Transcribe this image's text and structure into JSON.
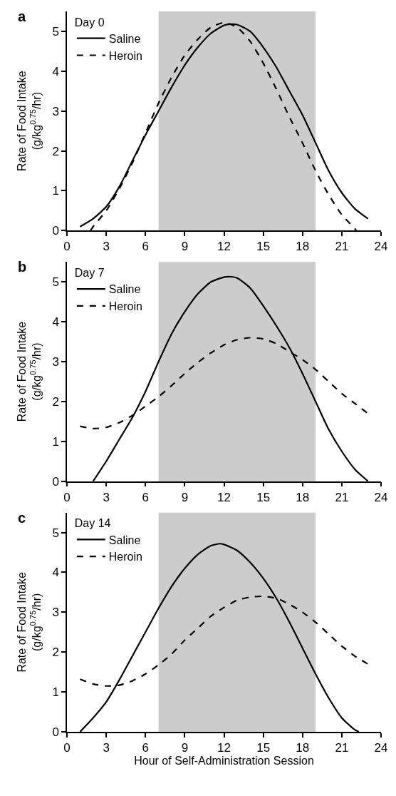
{
  "chart_data": [
    {
      "type": "line",
      "title": "a",
      "legend_title": "Day 0",
      "ylabel": "Rate of Food Intake\n(g/kg$^{0.75}$/hr)",
      "xlim": [
        0,
        24
      ],
      "xticks": [
        0,
        3,
        6,
        9,
        12,
        15,
        18,
        21,
        24
      ],
      "ylim": [
        0,
        5.5
      ],
      "yticks": [
        0,
        1,
        2,
        3,
        4,
        5
      ],
      "grid": false,
      "legend": "top left",
      "tick_labels": true,
      "bands": [
        {
          "axis": "x",
          "from": 7,
          "to": 19,
          "color": "#cccccc"
        }
      ],
      "series": [
        {
          "name": "Saline",
          "color": "#000000",
          "line_style": "solid",
          "x": [
            1,
            2,
            3,
            4,
            5,
            6,
            7,
            8,
            9,
            10,
            11,
            12,
            12.5,
            13,
            14,
            15,
            16,
            17,
            18,
            19,
            20,
            21,
            22,
            23
          ],
          "values": [
            0.1,
            0.3,
            0.6,
            1.1,
            1.75,
            2.4,
            3.0,
            3.6,
            4.15,
            4.6,
            4.95,
            5.15,
            5.18,
            5.17,
            5.0,
            4.6,
            4.1,
            3.5,
            2.9,
            2.2,
            1.5,
            0.95,
            0.55,
            0.3
          ]
        },
        {
          "name": "Heroin",
          "color": "#000000",
          "line_style": "dashed",
          "x": [
            1.8,
            2,
            3,
            4,
            5,
            6,
            7,
            8,
            9,
            10,
            11,
            12,
            13,
            14,
            15,
            16,
            17,
            18,
            19,
            20,
            21,
            22,
            22.1
          ],
          "values": [
            0,
            0.1,
            0.5,
            1.05,
            1.7,
            2.45,
            3.2,
            3.85,
            4.4,
            4.8,
            5.1,
            5.22,
            5.1,
            4.75,
            4.2,
            3.55,
            2.85,
            2.2,
            1.5,
            0.9,
            0.4,
            0.05,
            0
          ]
        }
      ]
    },
    {
      "type": "line",
      "title": "b",
      "legend_title": "Day 7",
      "ylabel": "Rate of Food Intake\n(g/kg$^{0.75}$/hr)",
      "xlim": [
        0,
        24
      ],
      "xticks": [
        0,
        3,
        6,
        9,
        12,
        15,
        18,
        21,
        24
      ],
      "ylim": [
        0,
        5.5
      ],
      "yticks": [
        0,
        1,
        2,
        3,
        4,
        5
      ],
      "grid": false,
      "legend": "top left",
      "bands": [
        {
          "axis": "x",
          "from": 7,
          "to": 19,
          "color": "#cccccc"
        }
      ],
      "series": [
        {
          "name": "Saline",
          "color": "#000000",
          "line_style": "solid",
          "x": [
            2,
            3,
            4,
            5,
            6,
            7,
            8,
            9,
            10,
            11,
            12,
            12.5,
            13,
            14,
            15,
            16,
            17,
            18,
            19,
            20,
            21,
            22,
            23
          ],
          "values": [
            0,
            0.5,
            1.05,
            1.6,
            2.25,
            3.0,
            3.7,
            4.25,
            4.7,
            5.0,
            5.12,
            5.13,
            5.1,
            4.85,
            4.4,
            3.9,
            3.35,
            2.7,
            2.0,
            1.3,
            0.75,
            0.3,
            0
          ]
        },
        {
          "name": "Heroin",
          "color": "#000000",
          "line_style": "dashed",
          "x": [
            1,
            2,
            3,
            4,
            5,
            6,
            7,
            8,
            9,
            10,
            11,
            12,
            13,
            14,
            15,
            16,
            17,
            18,
            19,
            20,
            21,
            22,
            23
          ],
          "values": [
            1.38,
            1.32,
            1.35,
            1.47,
            1.65,
            1.88,
            2.12,
            2.4,
            2.7,
            2.98,
            3.22,
            3.42,
            3.55,
            3.6,
            3.57,
            3.45,
            3.25,
            3.05,
            2.8,
            2.5,
            2.2,
            1.95,
            1.7
          ]
        }
      ]
    },
    {
      "type": "line",
      "title": "c",
      "legend_title": "Day 14",
      "xlabel": "Hour of Self-Administration Session",
      "ylabel": "Rate of Food Intake\n(g/kg$^{0.75}$/hr)",
      "xlim": [
        0,
        24
      ],
      "xticks": [
        0,
        3,
        6,
        9,
        12,
        15,
        18,
        21,
        24
      ],
      "ylim": [
        0,
        5.5
      ],
      "yticks": [
        0,
        1,
        2,
        3,
        4,
        5
      ],
      "grid": false,
      "legend": "top left",
      "bands": [
        {
          "axis": "x",
          "from": 7,
          "to": 19,
          "color": "#cccccc"
        }
      ],
      "series": [
        {
          "name": "Saline",
          "color": "#000000",
          "line_style": "solid",
          "x": [
            1,
            2,
            3,
            4,
            5,
            6,
            7,
            8,
            9,
            10,
            11,
            11.7,
            12,
            13,
            14,
            15,
            16,
            17,
            18,
            19,
            20,
            21,
            22,
            22.3
          ],
          "values": [
            0,
            0.35,
            0.75,
            1.3,
            1.9,
            2.5,
            3.1,
            3.65,
            4.1,
            4.45,
            4.67,
            4.72,
            4.7,
            4.55,
            4.25,
            3.85,
            3.35,
            2.75,
            2.1,
            1.45,
            0.85,
            0.35,
            0.05,
            0
          ]
        },
        {
          "name": "Heroin",
          "color": "#000000",
          "line_style": "dashed",
          "x": [
            1,
            2,
            3,
            4,
            5,
            6,
            7,
            8,
            9,
            10,
            11,
            12,
            13,
            14,
            15,
            16,
            17,
            18,
            19,
            20,
            21,
            22,
            23
          ],
          "values": [
            1.32,
            1.2,
            1.15,
            1.17,
            1.28,
            1.45,
            1.68,
            1.95,
            2.3,
            2.6,
            2.9,
            3.12,
            3.3,
            3.38,
            3.4,
            3.35,
            3.2,
            3.0,
            2.75,
            2.45,
            2.15,
            1.9,
            1.7
          ]
        }
      ]
    }
  ]
}
